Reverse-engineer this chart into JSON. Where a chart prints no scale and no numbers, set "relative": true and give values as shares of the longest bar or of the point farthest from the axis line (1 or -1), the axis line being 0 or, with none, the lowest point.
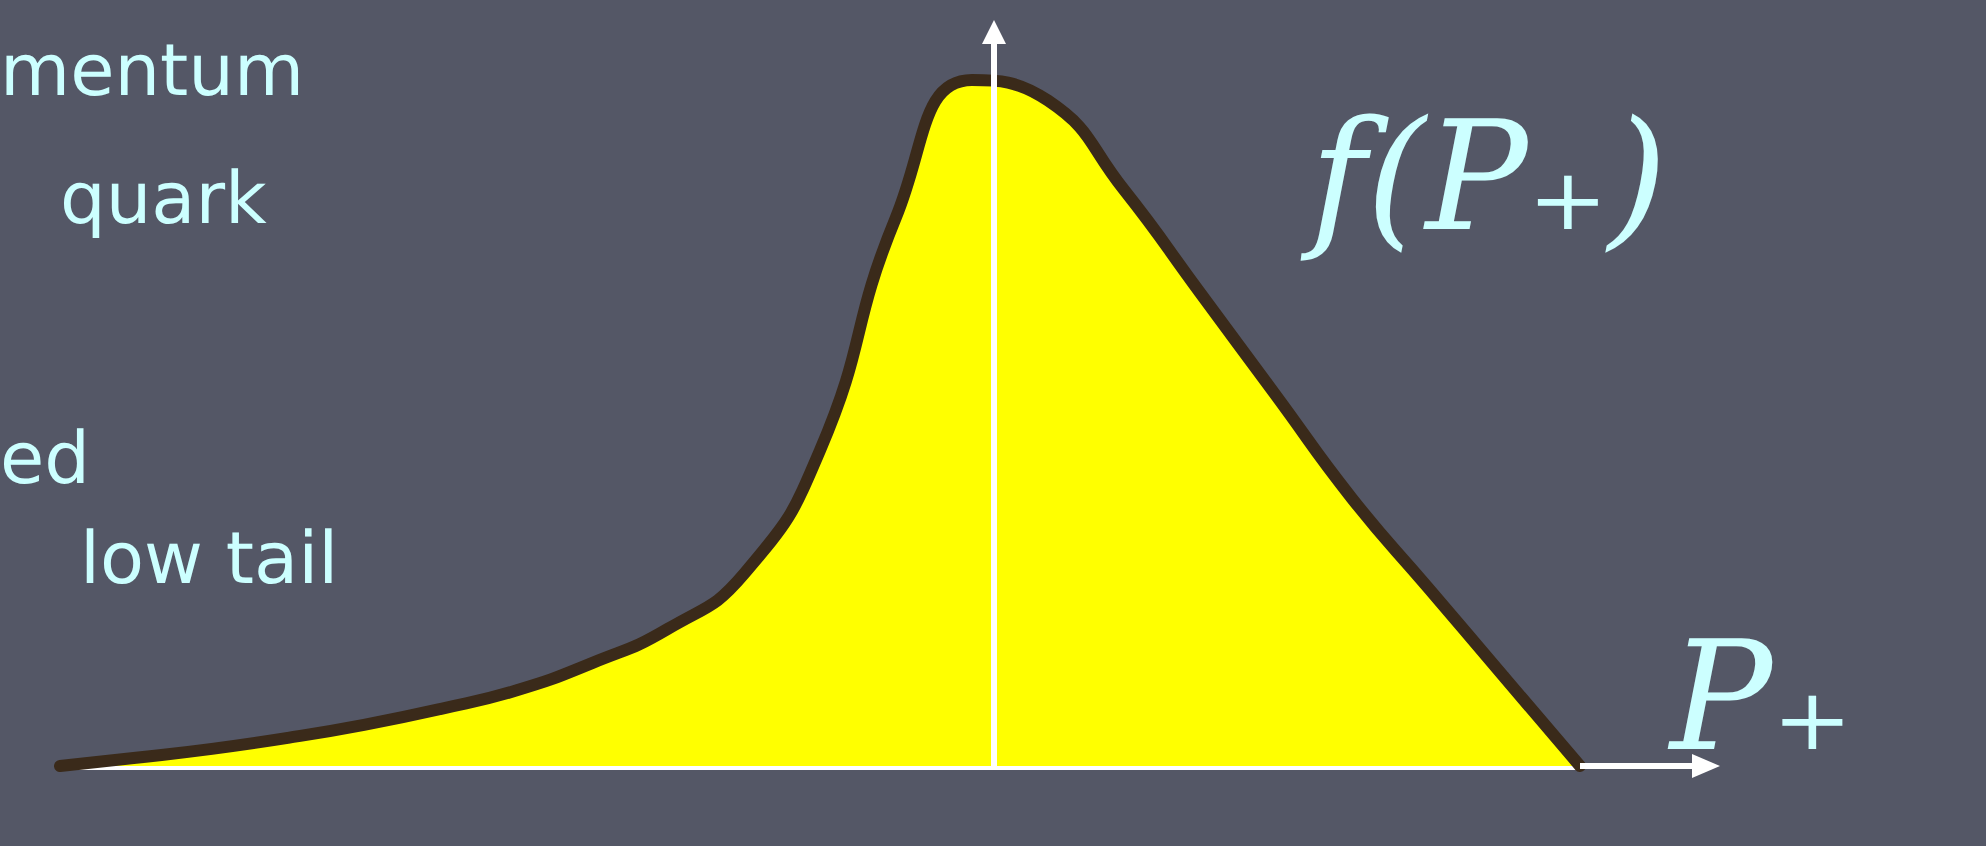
{
  "chart_data": {
    "type": "area",
    "relative": true,
    "xlabel": "P₊",
    "ylabel": "f(P₊)",
    "annotations": [
      "mentum",
      "quark",
      "ed",
      "low tail"
    ],
    "categories": [
      null,
      null,
      null,
      null,
      null,
      null,
      null,
      null,
      null,
      null,
      null,
      null,
      null,
      null,
      null,
      null,
      null,
      null,
      null,
      null,
      null
    ],
    "color": "#ffff00",
    "values": [
      0,
      0.012,
      0.025,
      0.041,
      0.06,
      0.083,
      0.11,
      0.15,
      0.2,
      0.28,
      0.46,
      0.8,
      1,
      0.97,
      0.84,
      0.69,
      0.54,
      0.39,
      0.26,
      0.13,
      0
    ],
    "grid": false,
    "marker": "none",
    "line_style": "solid"
  }
}
